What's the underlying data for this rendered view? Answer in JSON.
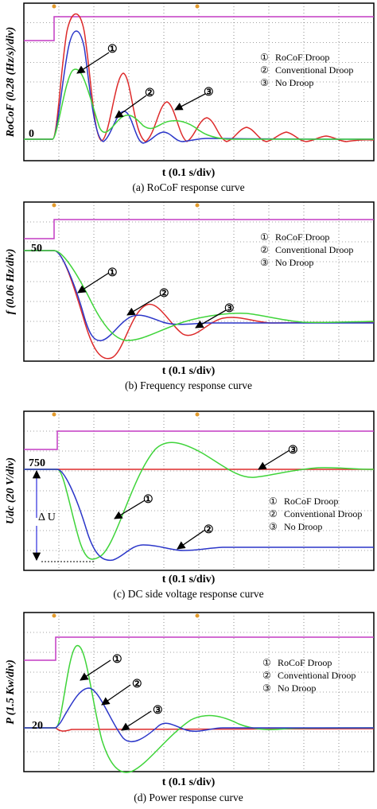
{
  "chart_data": [
    {
      "type": "line",
      "ylabel": "RoCoF (0.28 (Hz/s)/div)",
      "xlabel": "t (0.1 s/div)",
      "caption": "(a) RoCoF response curve",
      "reference_label": "0",
      "legend_placement": "right",
      "grid": true,
      "series": [
        {
          "name": "RoCoF Droop",
          "marker": "①",
          "color": "#2b36c9"
        },
        {
          "name": "Conventional Droop",
          "marker": "②",
          "color": "#dd2b2b"
        },
        {
          "name": "No Droop",
          "marker": "③",
          "color": "#3fd43a"
        }
      ]
    },
    {
      "type": "line",
      "ylabel": "f (0.06 Hz/div)",
      "xlabel": "t (0.1 s/div)",
      "caption": "(b) Frequency response curve",
      "reference_label": "50",
      "legend_placement": "right",
      "grid": true,
      "series": [
        {
          "name": "RoCoF Droop",
          "marker": "①",
          "color": "#2b36c9"
        },
        {
          "name": "Conventional Droop",
          "marker": "②",
          "color": "#dd2b2b"
        },
        {
          "name": "No Droop",
          "marker": "③",
          "color": "#3fd43a"
        }
      ]
    },
    {
      "type": "line",
      "ylabel": "Udc (20 V/div)",
      "xlabel": "t (0.1 s/div)",
      "caption": "(c) DC side voltage response curve",
      "reference_label": "750",
      "delta_label": "Δ U",
      "legend_placement": "right",
      "grid": true,
      "series": [
        {
          "name": "RoCoF Droop",
          "marker": "①",
          "color": "#2b36c9"
        },
        {
          "name": "Conventional Droop",
          "marker": "②",
          "color": "#dd2b2b"
        },
        {
          "name": "No Droop",
          "marker": "③",
          "color": "#3fd43a"
        }
      ]
    },
    {
      "type": "line",
      "ylabel": "P (1.5 Kw/div)",
      "xlabel": "t (0.1 s/div)",
      "caption": "(d) Power response curve",
      "reference_label": "20",
      "legend_placement": "right",
      "grid": true,
      "series": [
        {
          "name": "RoCoF Droop",
          "marker": "①",
          "color": "#2b36c9"
        },
        {
          "name": "Conventional Droop",
          "marker": "②",
          "color": "#dd2b2b"
        },
        {
          "name": "No Droop",
          "marker": "③",
          "color": "#3fd43a"
        }
      ]
    }
  ],
  "trigger_color": "#c43bc4",
  "grid_color": "#444444"
}
